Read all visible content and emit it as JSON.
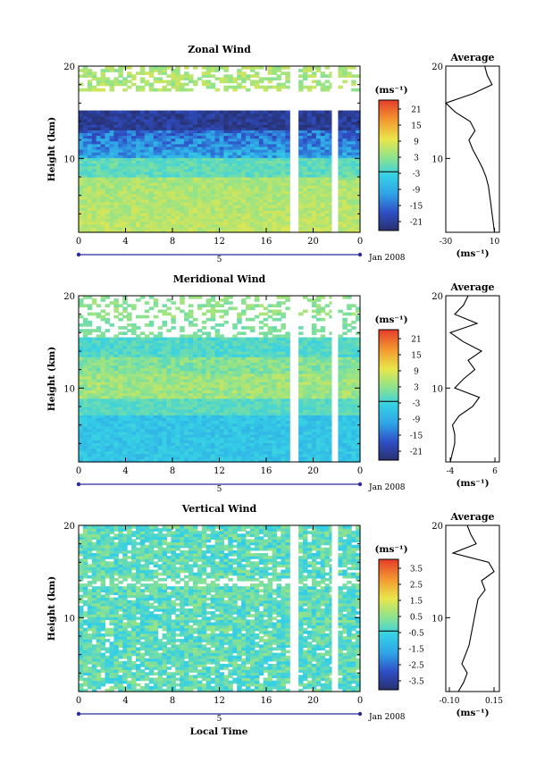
{
  "figure": {
    "xlabel_bottom": "Local Time",
    "date_label": "Jan 2008",
    "day_label": "5"
  },
  "chart_data": [
    {
      "type": "heatmap",
      "title": "Zonal Wind",
      "ylabel": "Height (km)",
      "xlabel": "",
      "x_ticks": [
        "0",
        "4",
        "8",
        "12",
        "16",
        "20",
        "0"
      ],
      "x_range": [
        0,
        24
      ],
      "y_ticks": [
        "10",
        "20"
      ],
      "y_range": [
        2,
        20
      ],
      "gaps_x": [
        [
          18.1,
          18.6
        ],
        [
          21.6,
          22.1
        ]
      ],
      "colorbar": {
        "unit": "(ms⁻¹)",
        "tick_labels": [
          "21",
          "15",
          "9",
          "3",
          "-3",
          "-9",
          "-15",
          "-21"
        ],
        "range": [
          -24,
          24
        ]
      },
      "profile": [
        [
          10,
          2
        ],
        [
          9,
          3
        ],
        [
          8,
          4
        ],
        [
          7,
          5
        ],
        [
          6,
          6
        ],
        [
          5,
          7
        ],
        [
          3,
          8
        ],
        [
          0,
          9
        ],
        [
          -4,
          10
        ],
        [
          -8,
          11
        ],
        [
          -11,
          12
        ],
        [
          -6,
          13
        ],
        [
          -10,
          14
        ],
        [
          -22,
          15
        ],
        [
          -30,
          16
        ],
        [
          -8,
          17
        ],
        [
          8,
          18
        ],
        [
          4,
          19
        ],
        [
          2,
          20
        ]
      ],
      "average": {
        "title": "Average",
        "x_ticks": [
          "-30",
          "10"
        ],
        "x_range": [
          -30,
          14
        ],
        "y_ticks": [
          "10",
          "20"
        ],
        "unit": "(ms⁻¹)"
      }
    },
    {
      "type": "heatmap",
      "title": "Meridional Wind",
      "ylabel": "Height (km)",
      "xlabel": "",
      "x_ticks": [
        "0",
        "4",
        "8",
        "12",
        "16",
        "20",
        "0"
      ],
      "x_range": [
        0,
        24
      ],
      "y_ticks": [
        "10",
        "20"
      ],
      "y_range": [
        2,
        20
      ],
      "gaps_x": [
        [
          18.1,
          18.6
        ],
        [
          21.6,
          22.1
        ]
      ],
      "colorbar": {
        "unit": "(ms⁻¹)",
        "tick_labels": [
          "21",
          "15",
          "9",
          "3",
          "-3",
          "-9",
          "-15",
          "-21"
        ],
        "range": [
          -24,
          24
        ]
      },
      "profile": [
        [
          -4,
          2
        ],
        [
          -3.5,
          3
        ],
        [
          -3,
          4
        ],
        [
          -3,
          5
        ],
        [
          -3.5,
          6
        ],
        [
          -2,
          7
        ],
        [
          1,
          8
        ],
        [
          2.5,
          9
        ],
        [
          -3,
          10
        ],
        [
          -1,
          11
        ],
        [
          1.5,
          12
        ],
        [
          0,
          13
        ],
        [
          3,
          14
        ],
        [
          -1,
          15
        ],
        [
          -4,
          16
        ],
        [
          2,
          17
        ],
        [
          -3,
          18
        ],
        [
          -1,
          19
        ],
        [
          0,
          20
        ]
      ],
      "average": {
        "title": "Average",
        "x_ticks": [
          "-4",
          "6"
        ],
        "x_range": [
          -5,
          7
        ],
        "y_ticks": [
          "10",
          "20"
        ],
        "unit": "(ms⁻¹)"
      }
    },
    {
      "type": "heatmap",
      "title": "Vertical Wind",
      "ylabel": "Height (km)",
      "xlabel": "Local Time",
      "x_ticks": [
        "0",
        "4",
        "8",
        "12",
        "16",
        "20",
        "0"
      ],
      "x_range": [
        0,
        24
      ],
      "y_ticks": [
        "10",
        "20"
      ],
      "y_range": [
        2,
        20
      ],
      "gaps_x": [
        [
          18.1,
          18.6
        ],
        [
          21.6,
          22.1
        ]
      ],
      "colorbar": {
        "unit": "(ms⁻¹)",
        "tick_labels": [
          "3.5",
          "2.5",
          "1.5",
          "0.5",
          "-0.5",
          "-1.5",
          "-2.5",
          "-3.5"
        ],
        "range": [
          -4,
          4
        ]
      },
      "profile": [
        [
          -0.05,
          2
        ],
        [
          -0.02,
          3
        ],
        [
          0.0,
          4
        ],
        [
          -0.03,
          5
        ],
        [
          -0.01,
          6
        ],
        [
          0.01,
          7
        ],
        [
          0.02,
          8
        ],
        [
          0.03,
          9
        ],
        [
          0.04,
          10
        ],
        [
          0.05,
          11
        ],
        [
          0.06,
          12
        ],
        [
          0.1,
          13
        ],
        [
          0.08,
          14
        ],
        [
          0.15,
          15
        ],
        [
          0.12,
          16
        ],
        [
          -0.08,
          17
        ],
        [
          0.05,
          18
        ],
        [
          0.02,
          19
        ],
        [
          0.0,
          20
        ]
      ],
      "average": {
        "title": "Average",
        "x_ticks": [
          "-0.10",
          "0.15"
        ],
        "x_range": [
          -0.12,
          0.18
        ],
        "y_ticks": [
          "10",
          "20"
        ],
        "unit": "(ms⁻¹)"
      }
    }
  ]
}
